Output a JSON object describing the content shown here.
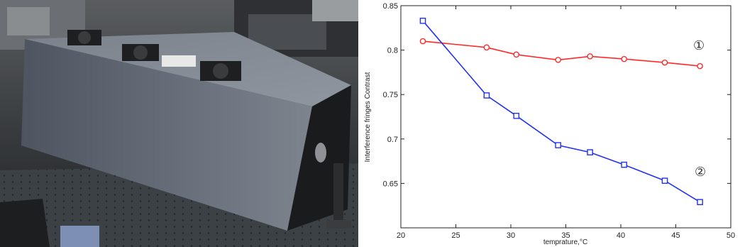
{
  "chart_data": {
    "type": "line",
    "title": "",
    "xlabel": "temprature,°C",
    "ylabel": "Interference fringes Contrast",
    "xlim": [
      20,
      50
    ],
    "ylim": [
      0.6,
      0.85
    ],
    "xticks": [
      "20",
      "25",
      "30",
      "35",
      "40",
      "45",
      "50"
    ],
    "yticks": [
      "0.65",
      "0.7",
      "0.75",
      "0.8",
      "0.85"
    ],
    "grid": false,
    "series": [
      {
        "name": "",
        "tag": "①",
        "color": "#ff2a2a",
        "marker": "circle",
        "x": [
          22,
          27.8,
          30.5,
          34.3,
          37.2,
          40.3,
          44,
          47.2
        ],
        "y": [
          0.81,
          0.803,
          0.795,
          0.789,
          0.793,
          0.79,
          0.786,
          0.782
        ]
      },
      {
        "name": "",
        "tag": "②",
        "color": "#2233ee",
        "marker": "square",
        "x": [
          22,
          27.8,
          30.5,
          34.3,
          37.2,
          40.3,
          44,
          47.2
        ],
        "y": [
          0.833,
          0.749,
          0.726,
          0.693,
          0.685,
          0.671,
          0.653,
          0.629
        ]
      }
    ]
  },
  "photo": {
    "subject": "optical-enclosure-on-table",
    "colors": {
      "box": "#5e6670",
      "table": "#3f4448",
      "background": "#2a2c2e"
    }
  }
}
